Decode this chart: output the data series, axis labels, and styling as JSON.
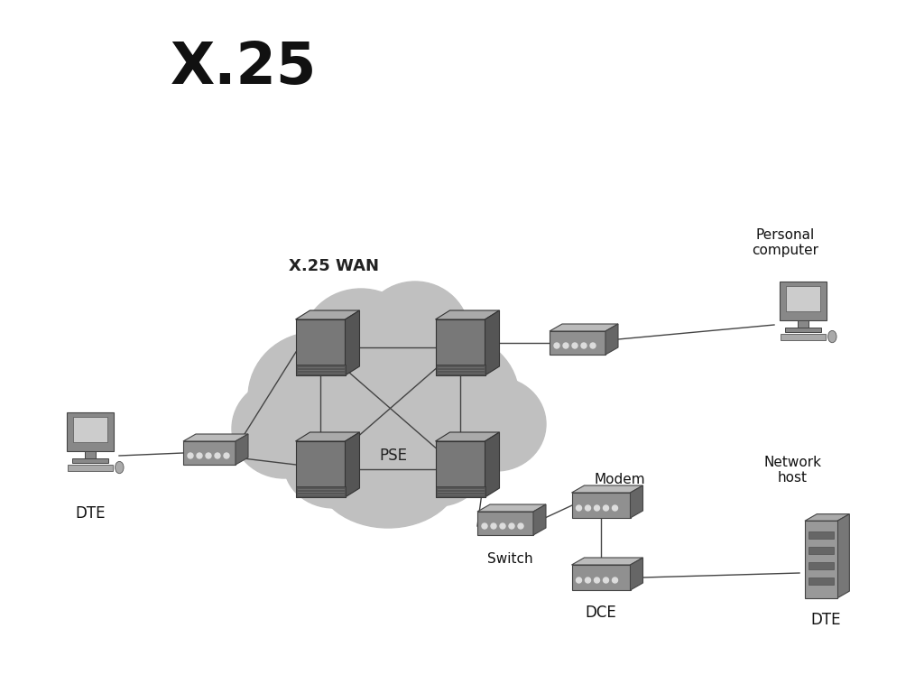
{
  "title": "X.25",
  "bg_color": "#ffffff",
  "cloud_color": "#c0c0c0",
  "line_color": "#444444",
  "wan_label": "X.25 WAN",
  "pse_label": "PSE",
  "switch_label": "Switch",
  "modem_label": "Modem",
  "dce_label": "DCE",
  "dte_left_label": "DTE",
  "dte_right_label": "DTE",
  "pc_label": "Personal\ncomputer",
  "network_host_label": "Network\nhost",
  "pse_node_color_front": "#787878",
  "pse_node_color_top": "#aaaaaa",
  "pse_node_color_side": "#555555",
  "switch_color_front": "#909090",
  "switch_color_top": "#bbbbbb",
  "switch_color_side": "#666666"
}
